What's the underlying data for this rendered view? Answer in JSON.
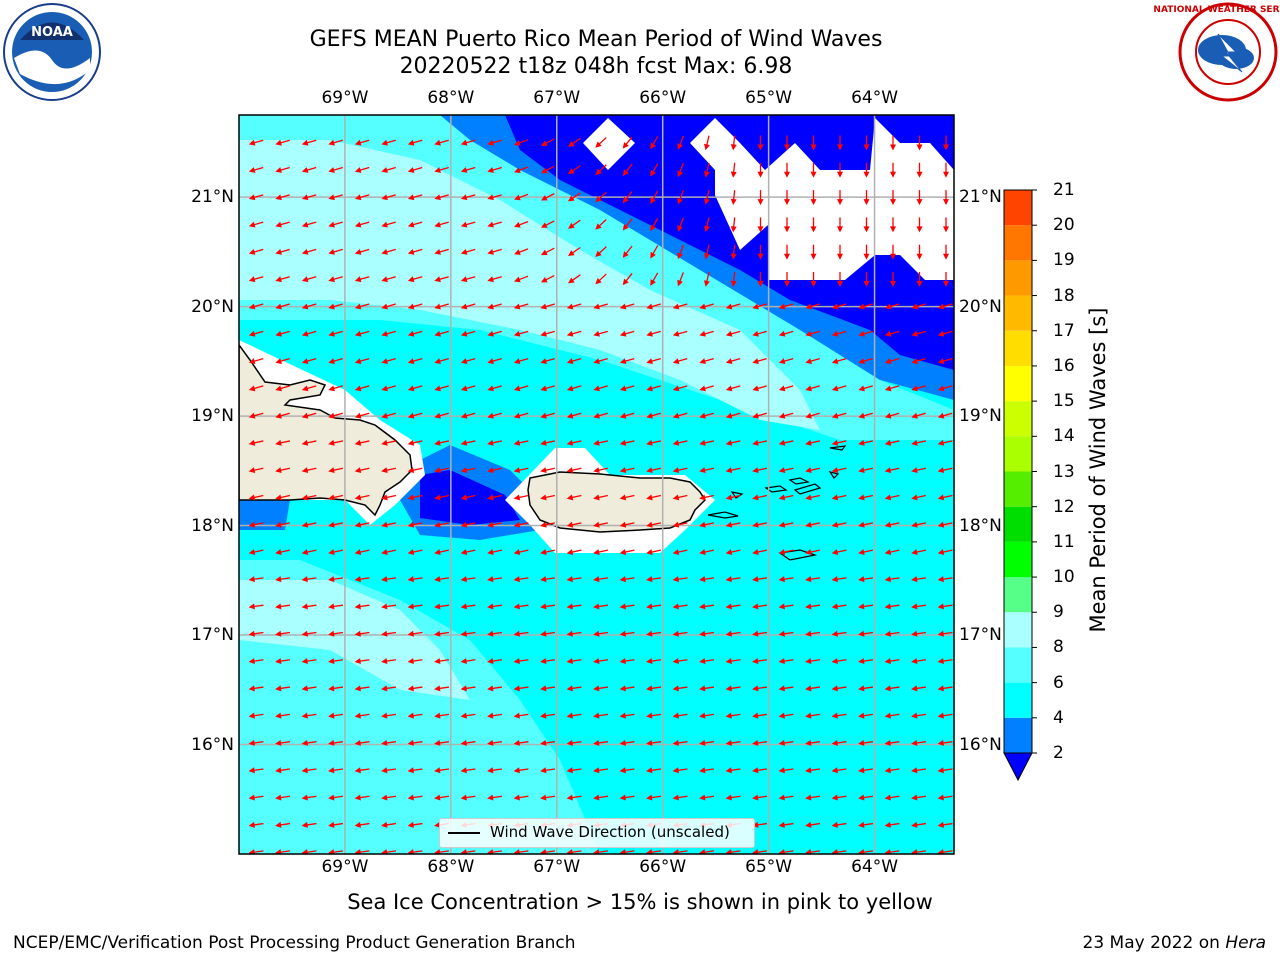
{
  "title": {
    "line1": "GEFS MEAN Puerto Rico Mean Period of Wind Waves",
    "line2": "20220522 t18z 048h fcst   Max: 6.98"
  },
  "logos": {
    "left": "NOAA",
    "right": "NATIONAL WEATHER SERVICE"
  },
  "map": {
    "lon_ticks": [
      "69°W",
      "68°W",
      "67°W",
      "66°W",
      "65°W",
      "64°W"
    ],
    "lat_ticks": [
      "21°N",
      "20°N",
      "19°N",
      "18°N",
      "17°N",
      "16°N"
    ],
    "lon_values": [
      -69,
      -68,
      -67,
      -66,
      -65,
      -64
    ],
    "lat_values": [
      21,
      20,
      19,
      18,
      17,
      16
    ],
    "extent": {
      "lon_min": -70.0,
      "lon_max": -63.25,
      "lat_min": 15.0,
      "lat_max": 21.75
    },
    "legend_label": "Wind Wave Direction (unscaled)",
    "arrow_color": "#ff0000",
    "land_color": "#efecdc",
    "grid_color": "#b0b0b0"
  },
  "colorbar": {
    "label": "Mean Period of Wind Waves [s]",
    "ticks": [
      "2",
      "4",
      "6",
      "8",
      "9",
      "10",
      "11",
      "12",
      "13",
      "14",
      "15",
      "16",
      "17",
      "18",
      "19",
      "20",
      "21"
    ],
    "colors": [
      "#0000ff",
      "#0080ff",
      "#00ffff",
      "#55ffff",
      "#aaffff",
      "#55ff88",
      "#00ff00",
      "#00dd00",
      "#55ee00",
      "#aaff00",
      "#ccff00",
      "#ffff00",
      "#ffdd00",
      "#ffbb00",
      "#ff9900",
      "#ff7700",
      "#ff4400",
      "#ff0000"
    ]
  },
  "chart_data": {
    "type": "heatmap",
    "title": "GEFS MEAN Puerto Rico Mean Period of Wind Waves",
    "subtitle": "20220522 t18z 048h fcst   Max: 6.98",
    "colorbar_label": "Mean Period of Wind Waves [s]",
    "colorbar_levels": [
      2,
      4,
      6,
      8,
      9,
      10,
      11,
      12,
      13,
      14,
      15,
      16,
      17,
      18,
      19,
      20,
      21
    ],
    "max_value": 6.98,
    "x_ticks": [
      "69°W",
      "68°W",
      "67°W",
      "66°W",
      "65°W",
      "64°W"
    ],
    "y_ticks": [
      "21°N",
      "20°N",
      "19°N",
      "18°N",
      "17°N",
      "16°N"
    ],
    "series": [
      {
        "name": "Wind Wave Direction (unscaled)"
      }
    ]
  },
  "note": "Sea Ice Concentration > 15% is shown in pink to yellow",
  "footer": {
    "left": "NCEP/EMC/Verification Post Processing Product Generation Branch",
    "right_date": "23 May 2022 on ",
    "right_host": "Hera"
  }
}
